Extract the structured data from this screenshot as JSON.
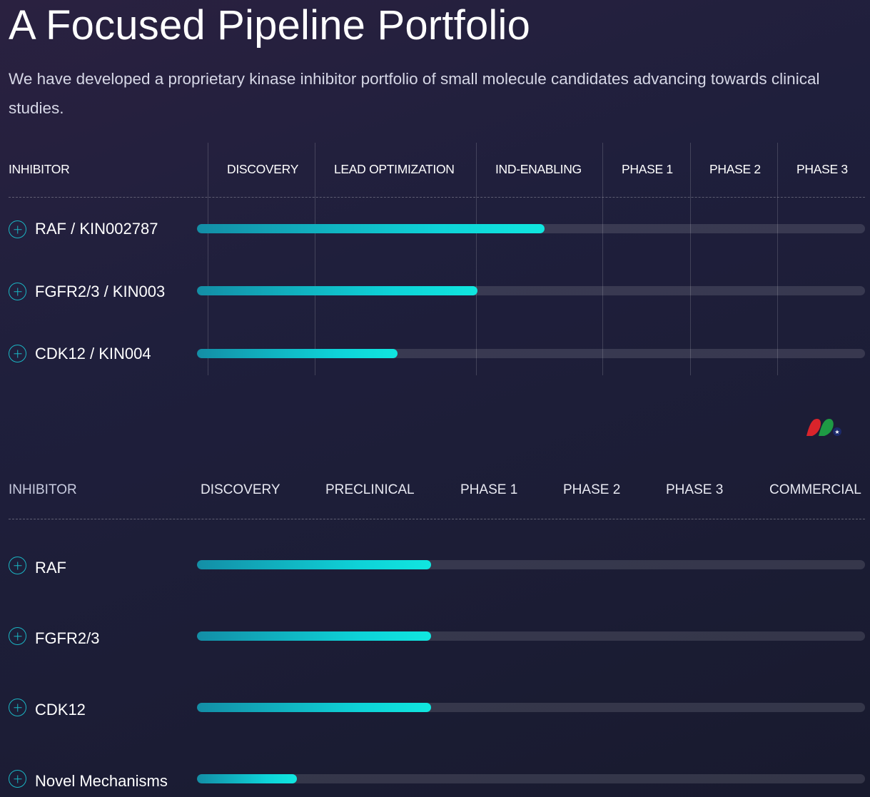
{
  "header": {
    "title": "A Focused Pipeline Portfolio",
    "subtitle": "We have developed a proprietary kinase inhibitor portfolio of small molecule candidates advancing towards clinical studies."
  },
  "table1": {
    "columns": [
      "INHIBITOR",
      "DISCOVERY",
      "LEAD OPTIMIZATION",
      "IND-ENABLING",
      "PHASE 1",
      "PHASE 2",
      "PHASE 3"
    ],
    "rows": [
      {
        "label": "RAF / KIN002787",
        "progress": 0.52
      },
      {
        "label": "FGFR2/3 / KIN003",
        "progress": 0.42
      },
      {
        "label": "CDK12 / KIN004",
        "progress": 0.3
      }
    ]
  },
  "table2": {
    "columns": [
      "INHIBITOR",
      "DISCOVERY",
      "PRECLINICAL",
      "PHASE 1",
      "PHASE 2",
      "PHASE 3",
      "COMMERCIAL"
    ],
    "rows": [
      {
        "label": "RAF",
        "progress": 0.35
      },
      {
        "label": "FGFR2/3",
        "progress": 0.35
      },
      {
        "label": "CDK12",
        "progress": 0.35
      },
      {
        "label": "Novel Mechanisms",
        "progress": 0.15
      }
    ]
  },
  "icons": {
    "expand": "plus-circle-icon",
    "logo": "company-logo"
  },
  "colors": {
    "accent": "#0ed3d8",
    "accent_dark": "#138ea6",
    "track": "#3a3b52",
    "logo_red": "#d9242b",
    "logo_green": "#1e9a44"
  }
}
